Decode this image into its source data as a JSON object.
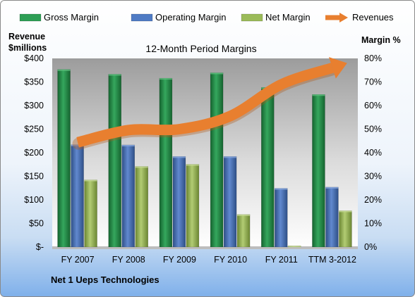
{
  "chart_data": {
    "type": "bar",
    "title": "12-Month Period Margins",
    "company": "Net 1 Ueps Technologies",
    "left_axis": {
      "label_line1": "Revenue",
      "label_line2": "$millions",
      "ylim": [
        0,
        400
      ],
      "tick_labels": [
        "$-",
        "$50",
        "$100",
        "$150",
        "$200",
        "$250",
        "$300",
        "$350",
        "$400"
      ]
    },
    "right_axis": {
      "label": "Margin %",
      "ylim": [
        0,
        80
      ],
      "tick_labels": [
        "0%",
        "10%",
        "20%",
        "30%",
        "40%",
        "50%",
        "60%",
        "70%",
        "80%"
      ]
    },
    "categories": [
      "FY 2007",
      "FY 2008",
      "FY 2009",
      "FY 2010",
      "FY 2011",
      "TTM 3-2012"
    ],
    "series": [
      {
        "name": "Gross Margin",
        "axis": "right",
        "values": [
          75.3,
          73.3,
          71.6,
          73.9,
          67.7,
          64.7
        ],
        "color": "#2e9e55"
      },
      {
        "name": "Operating Margin",
        "axis": "right",
        "values": [
          43.4,
          43.3,
          38.4,
          38.4,
          24.9,
          25.4
        ],
        "color": "#4f7bc4"
      },
      {
        "name": "Net Margin",
        "axis": "right",
        "values": [
          28.5,
          34.2,
          35.1,
          13.8,
          0.5,
          15.4
        ],
        "color": "#9bbb59"
      },
      {
        "name": "Revenues",
        "axis": "left",
        "type": "line",
        "values": [
          222,
          248,
          250,
          278,
          345,
          380
        ],
        "color": "#e87f2f"
      }
    ],
    "grid": false,
    "legend": "top"
  }
}
